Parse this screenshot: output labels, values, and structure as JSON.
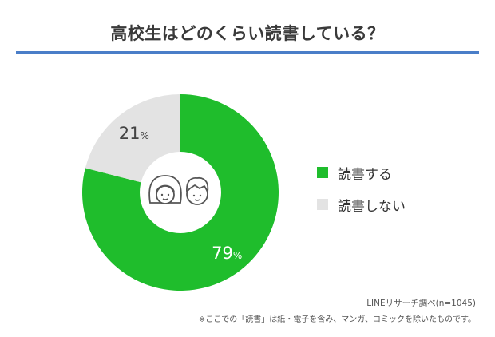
{
  "title": "高校生はどのくらい読書している？",
  "chart_data": {
    "type": "pie",
    "variant": "donut",
    "title": "高校生はどのくらい読書している？",
    "slices": [
      {
        "label": "読書する",
        "value": 79,
        "display": "79",
        "unit": "%",
        "color": "#1fbd2c"
      },
      {
        "label": "読書しない",
        "value": 21,
        "display": "21",
        "unit": "%",
        "color": "#e3e3e3"
      }
    ],
    "legend_position": "right",
    "center_icons": [
      "girl-face-icon",
      "boy-face-icon"
    ]
  },
  "source": "LINEリサーチ調べ(n=1045)",
  "note": "※ここでの「読書」は紙・電子を含み、マンガ、コミックを除いたものです。"
}
